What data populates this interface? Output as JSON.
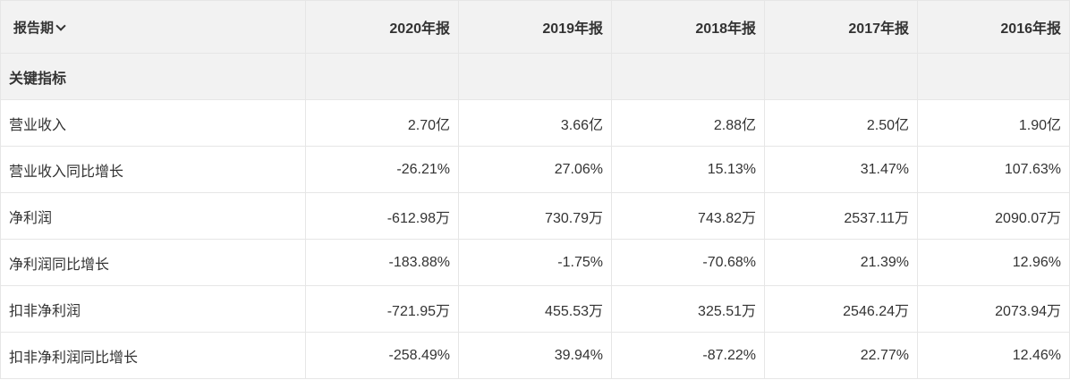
{
  "header": {
    "period_label": "报告期",
    "years": [
      "2020年报",
      "2019年报",
      "2018年报",
      "2017年报",
      "2016年报"
    ]
  },
  "section": {
    "title": "关键指标"
  },
  "rows": [
    {
      "label": "营业收入",
      "values": [
        "2.70亿",
        "3.66亿",
        "2.88亿",
        "2.50亿",
        "1.90亿"
      ]
    },
    {
      "label": "营业收入同比增长",
      "values": [
        "-26.21%",
        "27.06%",
        "15.13%",
        "31.47%",
        "107.63%"
      ]
    },
    {
      "label": "净利润",
      "values": [
        "-612.98万",
        "730.79万",
        "743.82万",
        "2537.11万",
        "2090.07万"
      ]
    },
    {
      "label": "净利润同比增长",
      "values": [
        "-183.88%",
        "-1.75%",
        "-70.68%",
        "21.39%",
        "12.96%"
      ]
    },
    {
      "label": "扣非净利润",
      "values": [
        "-721.95万",
        "455.53万",
        "325.51万",
        "2546.24万",
        "2073.94万"
      ]
    },
    {
      "label": "扣非净利润同比增长",
      "values": [
        "-258.49%",
        "39.94%",
        "-87.22%",
        "22.77%",
        "12.46%"
      ]
    }
  ]
}
